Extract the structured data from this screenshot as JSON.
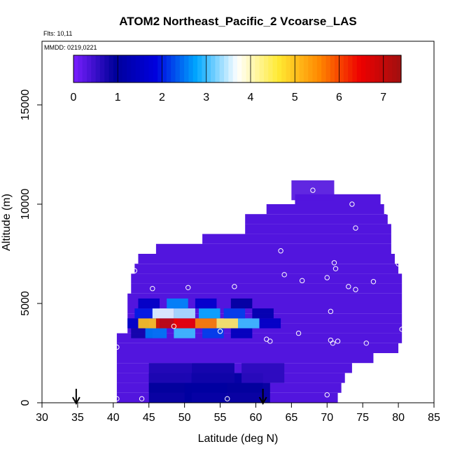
{
  "chart_data": {
    "type": "heatmap",
    "title": "ATOM2 Northeast_Pacific_2 Vcoarse_LAS",
    "flights_label": "Flts: 10,11",
    "dates_label": "MMDD: 0219,0221",
    "xlabel": "Latitude (deg N)",
    "ylabel": "Altitude (m)",
    "xlim": [
      30,
      85
    ],
    "ylim": [
      0,
      17500
    ],
    "xticks": [
      "30",
      "35",
      "40",
      "45",
      "50",
      "55",
      "60",
      "65",
      "70",
      "75",
      "80",
      "85"
    ],
    "yticks": [
      "0",
      "5000",
      "10000",
      "15000"
    ],
    "colorbar": {
      "min": 0,
      "max": 7.4,
      "ticks": [
        "0",
        "1",
        "2",
        "3",
        "4",
        "5",
        "6",
        "7"
      ],
      "stops": [
        "#7a1fff",
        "#00009a",
        "#0000dd",
        "#00a8ff",
        "#ffffff",
        "#ffea33",
        "#ff8800",
        "#ee0000",
        "#a01010"
      ]
    },
    "background_value": 0.3,
    "cells": [
      {
        "lat": 68,
        "alt": 10700,
        "value": 0.3
      },
      {
        "lat": 44,
        "alt": 3500,
        "value": 0.8
      },
      {
        "lat": 46,
        "alt": 3500,
        "value": 2.5
      },
      {
        "lat": 50,
        "alt": 3500,
        "value": 3.0
      },
      {
        "lat": 54,
        "alt": 3500,
        "value": 2.2
      },
      {
        "lat": 58,
        "alt": 3500,
        "value": 1.4
      },
      {
        "lat": 43.5,
        "alt": 4000,
        "value": 1.5
      },
      {
        "lat": 45,
        "alt": 4000,
        "value": 5.0
      },
      {
        "lat": 47.5,
        "alt": 4000,
        "value": 7.0
      },
      {
        "lat": 50,
        "alt": 4000,
        "value": 6.5
      },
      {
        "lat": 53,
        "alt": 4000,
        "value": 5.6
      },
      {
        "lat": 56,
        "alt": 4000,
        "value": 4.4
      },
      {
        "lat": 59,
        "alt": 4000,
        "value": 3.0
      },
      {
        "lat": 62,
        "alt": 4000,
        "value": 1.5
      },
      {
        "lat": 44.5,
        "alt": 4500,
        "value": 2.0
      },
      {
        "lat": 47,
        "alt": 4500,
        "value": 3.6
      },
      {
        "lat": 50,
        "alt": 4500,
        "value": 3.4
      },
      {
        "lat": 53.5,
        "alt": 4500,
        "value": 2.8
      },
      {
        "lat": 57,
        "alt": 4500,
        "value": 2.2
      },
      {
        "lat": 61,
        "alt": 4500,
        "value": 1.2
      },
      {
        "lat": 45,
        "alt": 5000,
        "value": 1.5
      },
      {
        "lat": 49,
        "alt": 5000,
        "value": 2.6
      },
      {
        "lat": 53,
        "alt": 5000,
        "value": 1.6
      },
      {
        "lat": 58,
        "alt": 5000,
        "value": 1.0
      },
      {
        "lat": 48,
        "alt": 1000,
        "value": 1.0
      },
      {
        "lat": 53,
        "alt": 1000,
        "value": 1.2
      },
      {
        "lat": 58,
        "alt": 1000,
        "value": 1.0
      },
      {
        "lat": 48,
        "alt": 500,
        "value": 0.9
      },
      {
        "lat": 53,
        "alt": 500,
        "value": 1.0
      },
      {
        "lat": 59,
        "alt": 500,
        "value": 0.9
      },
      {
        "lat": 48,
        "alt": 1500,
        "value": 0.7
      },
      {
        "lat": 54,
        "alt": 1500,
        "value": 0.8
      },
      {
        "lat": 61,
        "alt": 1500,
        "value": 0.6
      }
    ],
    "points": [
      [
        68,
        10700
      ],
      [
        73.5,
        10000
      ],
      [
        78.5,
        9600
      ],
      [
        74,
        8800
      ],
      [
        63.5,
        7650
      ],
      [
        71,
        7050
      ],
      [
        71.2,
        6750
      ],
      [
        64,
        6450
      ],
      [
        43,
        6650
      ],
      [
        66.5,
        6150
      ],
      [
        70,
        6300
      ],
      [
        76.5,
        6100
      ],
      [
        80,
        7000
      ],
      [
        50.5,
        5800
      ],
      [
        57,
        5850
      ],
      [
        45.5,
        5750
      ],
      [
        73,
        5850
      ],
      [
        74,
        5700
      ],
      [
        70.5,
        4600
      ],
      [
        48.5,
        3850
      ],
      [
        55,
        3600
      ],
      [
        66,
        3500
      ],
      [
        80.5,
        3700
      ],
      [
        61.5,
        3200
      ],
      [
        62,
        3100
      ],
      [
        70.5,
        3150
      ],
      [
        71.5,
        3100
      ],
      [
        70.8,
        3000
      ],
      [
        75.5,
        3000
      ],
      [
        40.5,
        2800
      ],
      [
        40.5,
        200
      ],
      [
        44,
        200
      ],
      [
        56,
        200
      ],
      [
        70,
        400
      ]
    ],
    "arrows": [
      34.8,
      61
    ]
  }
}
